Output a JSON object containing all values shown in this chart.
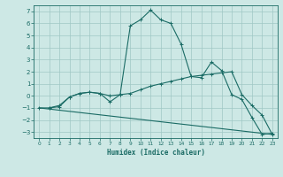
{
  "xlabel": "Humidex (Indice chaleur)",
  "bg_color": "#cde8e5",
  "grid_color": "#a0c8c4",
  "line_color": "#1a6b65",
  "xlim": [
    -0.5,
    23.5
  ],
  "ylim": [
    -3.5,
    7.5
  ],
  "xticks": [
    0,
    1,
    2,
    3,
    4,
    5,
    6,
    7,
    8,
    9,
    10,
    11,
    12,
    13,
    14,
    15,
    16,
    17,
    18,
    19,
    20,
    21,
    22,
    23
  ],
  "yticks": [
    -3,
    -2,
    -1,
    0,
    1,
    2,
    3,
    4,
    5,
    6,
    7
  ],
  "line1_x": [
    1,
    2,
    3,
    4,
    5,
    6,
    7,
    8,
    9,
    10,
    11,
    12,
    13,
    14,
    15,
    16,
    17,
    18,
    19,
    20,
    21,
    22,
    23
  ],
  "line1_y": [
    -1.0,
    -0.8,
    -0.1,
    0.2,
    0.3,
    0.2,
    -0.5,
    0.1,
    5.8,
    6.3,
    7.1,
    6.3,
    6.0,
    4.3,
    1.6,
    1.5,
    2.8,
    2.1,
    0.1,
    -0.3,
    -1.8,
    -3.2,
    -3.1
  ],
  "line2_x": [
    0,
    1,
    2,
    3,
    4,
    5,
    6,
    7,
    8,
    9,
    10,
    11,
    12,
    13,
    14,
    15,
    16,
    17,
    18,
    19,
    20,
    21,
    22,
    23
  ],
  "line2_y": [
    -1.0,
    -1.0,
    -0.9,
    -0.1,
    0.2,
    0.3,
    0.2,
    0.0,
    0.1,
    0.2,
    0.5,
    0.8,
    1.0,
    1.2,
    1.4,
    1.6,
    1.7,
    1.8,
    1.9,
    2.0,
    0.1,
    -0.8,
    -1.6,
    -3.2
  ],
  "line3_x": [
    0,
    23
  ],
  "line3_y": [
    -1.0,
    -3.2
  ]
}
